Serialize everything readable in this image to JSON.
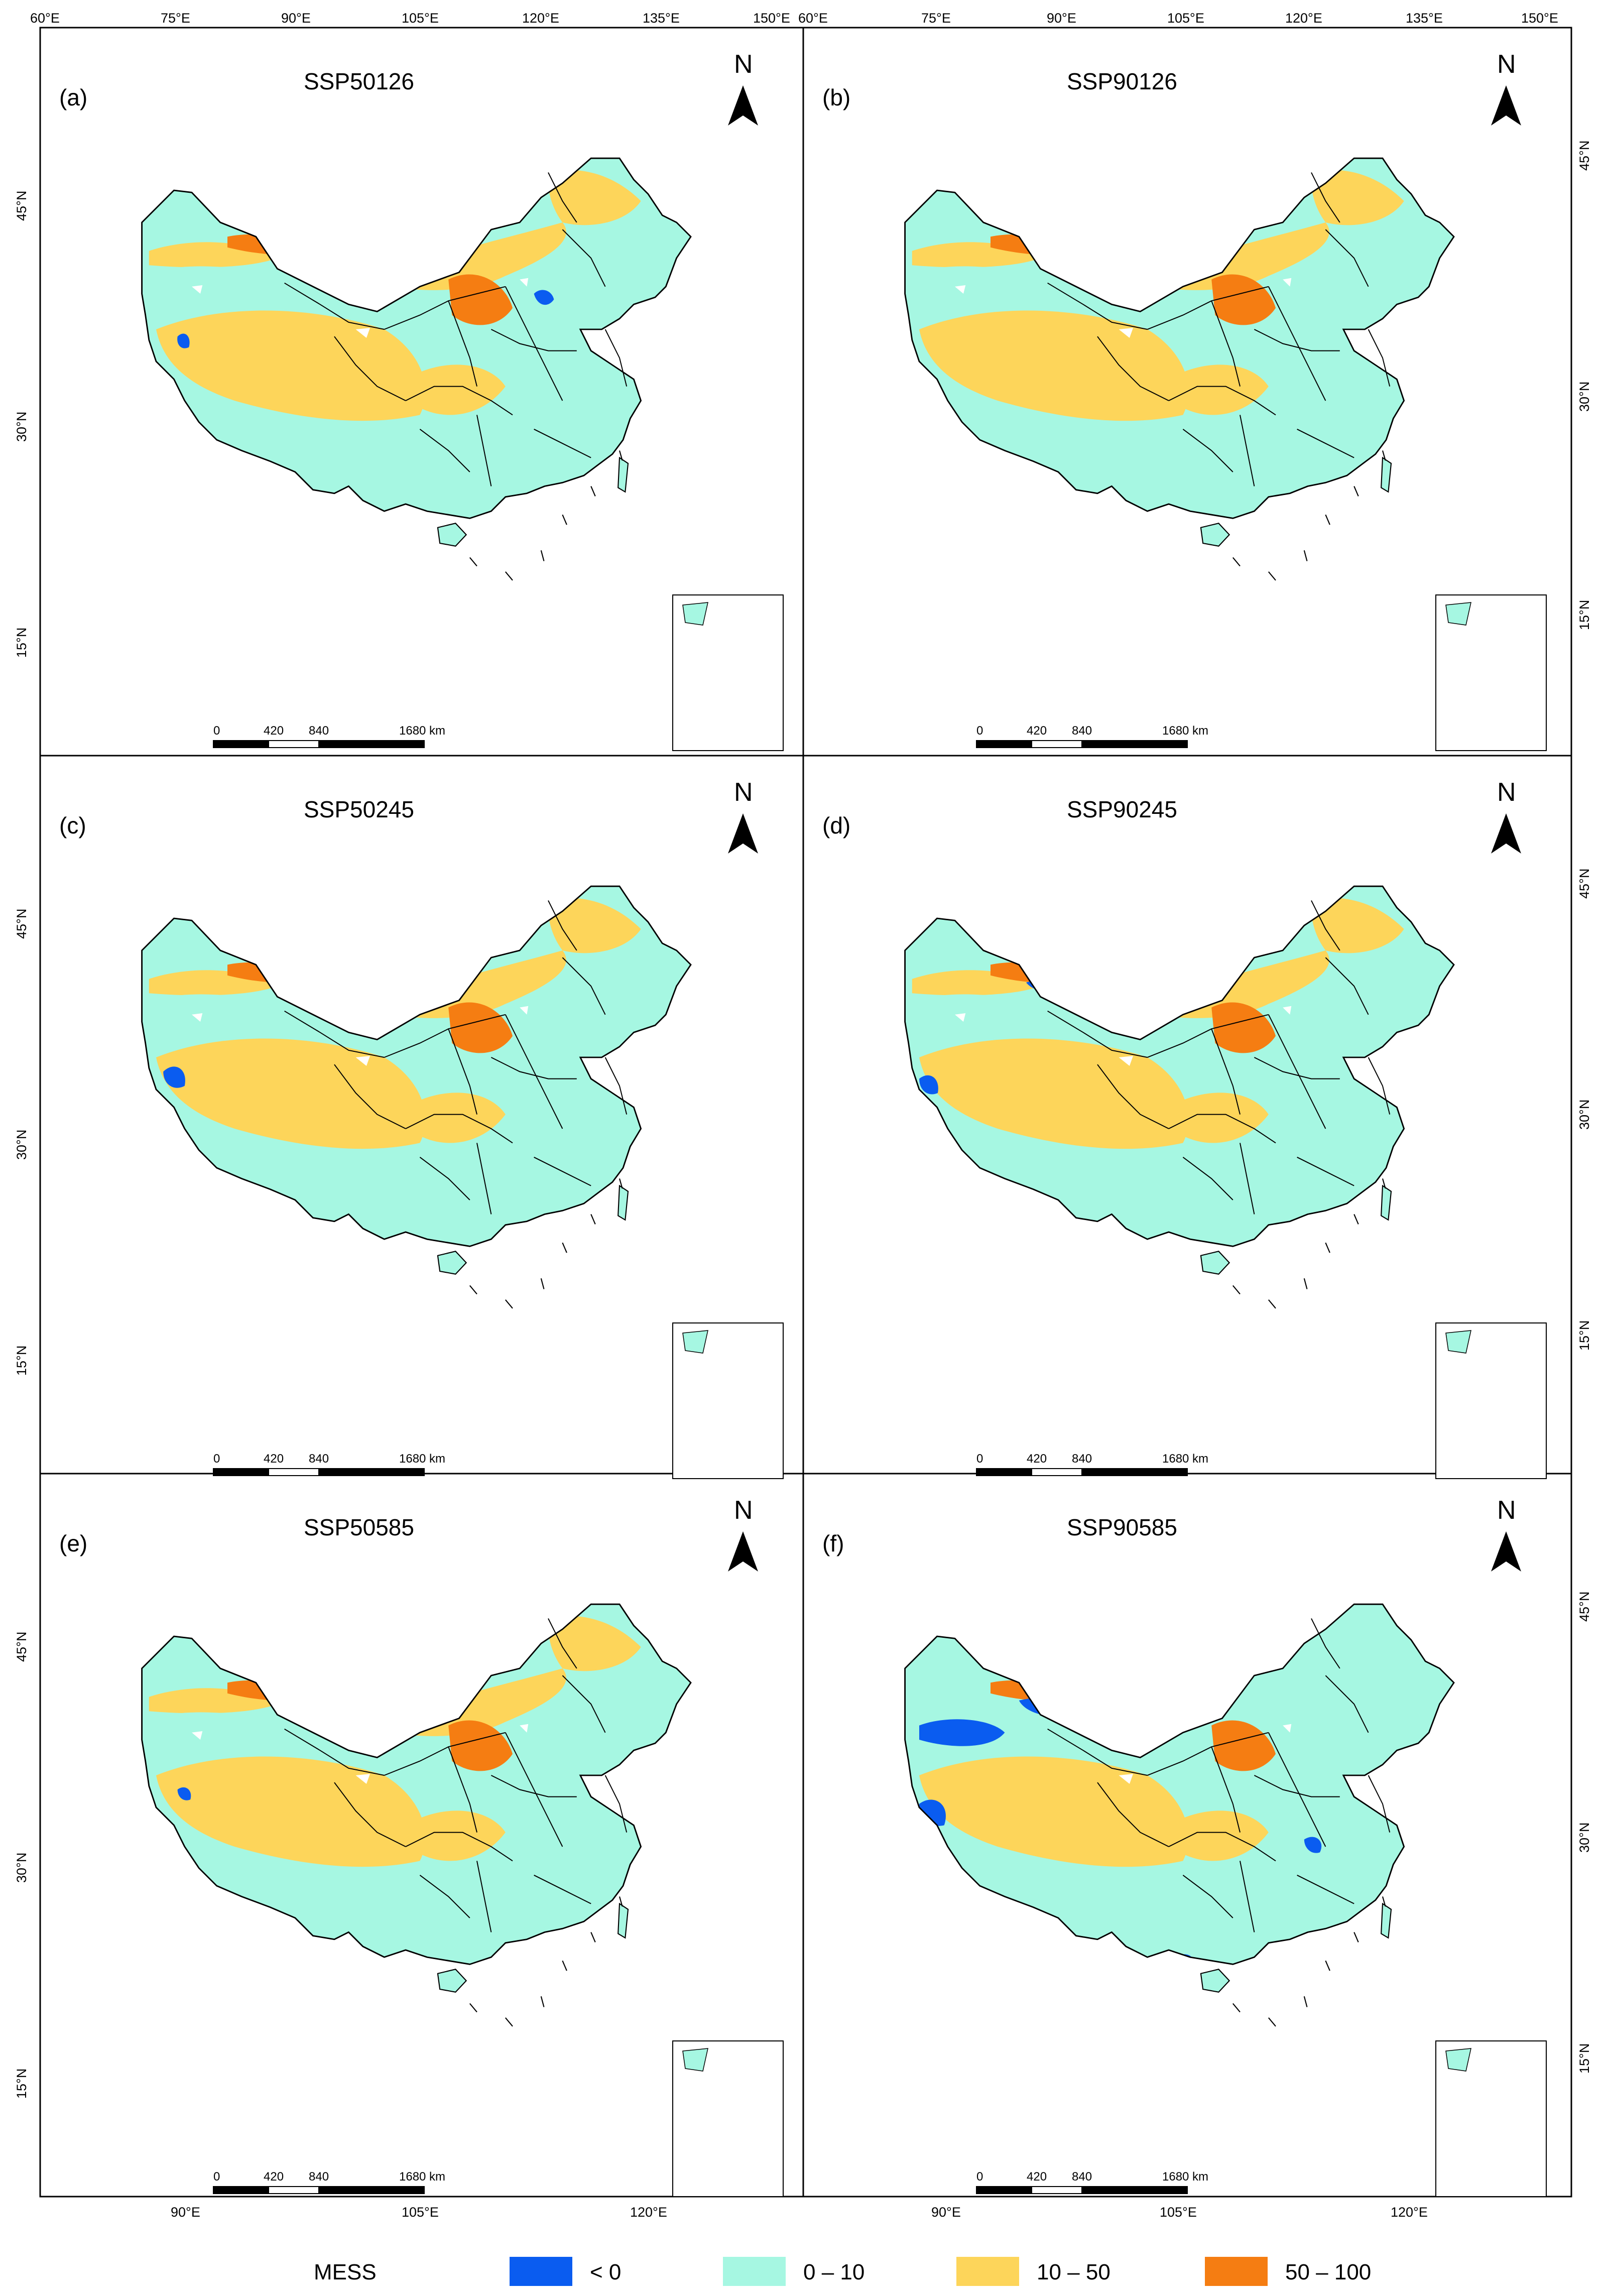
{
  "colors": {
    "below_0": "#0a5cf0",
    "c0_10": "#a6f7e2",
    "c10_50": "#fdd55a",
    "c50_100": "#f57d12",
    "nodata": "#ffffff",
    "border": "#000000"
  },
  "axes": {
    "top_lon": [
      "60°E",
      "75°E",
      "90°E",
      "105°E",
      "120°E",
      "135°E",
      "150°E"
    ],
    "bottom_lon": [
      "90°E",
      "105°E",
      "120°E"
    ],
    "lat": [
      "45°N",
      "30°N",
      "15°N"
    ]
  },
  "panels": [
    {
      "label": "(a)",
      "title": "SSP50126",
      "regime": "a"
    },
    {
      "label": "(b)",
      "title": "SSP90126",
      "regime": "b"
    },
    {
      "label": "(c)",
      "title": "SSP50245",
      "regime": "c"
    },
    {
      "label": "(d)",
      "title": "SSP90245",
      "regime": "d"
    },
    {
      "label": "(e)",
      "title": "SSP50585",
      "regime": "e"
    },
    {
      "label": "(f)",
      "title": "SSP90585",
      "regime": "f"
    }
  ],
  "north_arrow": "N",
  "scale_bar": {
    "labels": [
      "0",
      "420",
      "840",
      "1680 km"
    ]
  },
  "legend": {
    "title": "MESS",
    "items": [
      {
        "label": "< 0",
        "color": "#0a5cf0"
      },
      {
        "label": "0 – 10",
        "color": "#a6f7e2"
      },
      {
        "label": "10 – 50",
        "color": "#fdd55a"
      },
      {
        "label": "50 – 100",
        "color": "#f57d12"
      }
    ]
  }
}
